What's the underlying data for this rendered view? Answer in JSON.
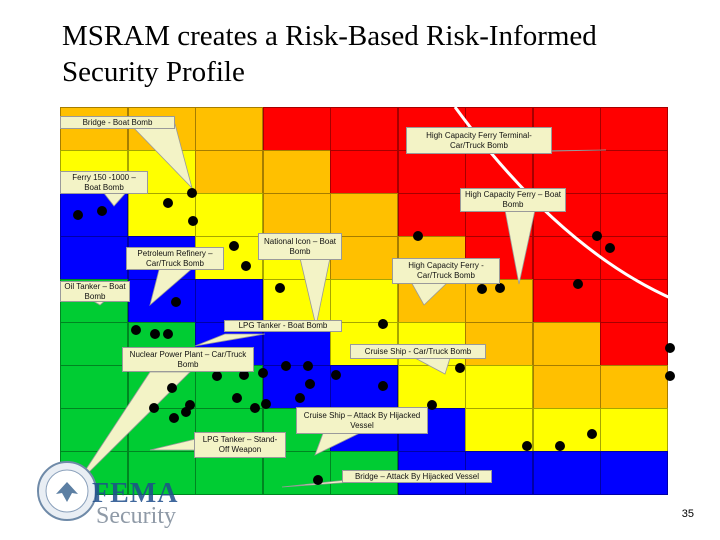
{
  "title": "MSRAM creates a Risk-Based Risk-Informed Security Profile",
  "page_number": "35",
  "logo": {
    "agency": "FEMA",
    "department_word": "Security"
  },
  "colors": {
    "red": "#ff0000",
    "orange": "#ffc000",
    "yellow": "#ffff00",
    "green": "#00cc33",
    "blue": "#0000ff",
    "dot": "#000000",
    "callout_fill": "#f3f3c6",
    "curve": "#ffffff"
  },
  "grid": {
    "rows": [
      [
        "orange",
        "orange",
        "orange",
        "red",
        "red",
        "red",
        "red",
        "red",
        "red"
      ],
      [
        "yellow",
        "yellow",
        "orange",
        "orange",
        "red",
        "red",
        "red",
        "red",
        "red"
      ],
      [
        "blue",
        "yellow",
        "yellow",
        "orange",
        "orange",
        "red",
        "red",
        "red",
        "red"
      ],
      [
        "blue",
        "blue",
        "yellow",
        "yellow",
        "orange",
        "orange",
        "red",
        "red",
        "red"
      ],
      [
        "green",
        "blue",
        "blue",
        "yellow",
        "yellow",
        "orange",
        "orange",
        "red",
        "red"
      ],
      [
        "green",
        "green",
        "blue",
        "blue",
        "yellow",
        "yellow",
        "orange",
        "orange",
        "red"
      ],
      [
        "green",
        "green",
        "green",
        "blue",
        "blue",
        "yellow",
        "yellow",
        "orange",
        "orange"
      ],
      [
        "green",
        "green",
        "green",
        "green",
        "blue",
        "blue",
        "yellow",
        "yellow",
        "yellow"
      ],
      [
        "green",
        "green",
        "green",
        "green",
        "green",
        "blue",
        "blue",
        "blue",
        "blue"
      ]
    ]
  },
  "callouts": [
    {
      "id": "bridge",
      "label": "Bridge - Boat Bomb"
    },
    {
      "id": "hc-ferry-terminal",
      "label": "High Capacity Ferry Terminal-Car/Truck Bomb"
    },
    {
      "id": "ferry-150",
      "label": "Ferry 150 -1000 – Boat Bomb"
    },
    {
      "id": "hc-ferry-boat",
      "label": "High Capacity Ferry – Boat Bomb"
    },
    {
      "id": "petroleum",
      "label": "Petroleum Refinery – Car/Truck Bomb"
    },
    {
      "id": "national-icon",
      "label": "National Icon – Boat Bomb"
    },
    {
      "id": "hc-ferry-car",
      "label": "High Capacity Ferry - Car/Truck Bomb"
    },
    {
      "id": "oil-tanker",
      "label": "Oil Tanker – Boat Bomb"
    },
    {
      "id": "lpg-boat",
      "label": "LPG Tanker - Boat Bomb"
    },
    {
      "id": "nuclear",
      "label": "Nuclear Power Plant – Car/Truck Bomb"
    },
    {
      "id": "cruise-car",
      "label": "Cruise Ship - Car/Truck Bomb"
    },
    {
      "id": "cruise-hijack",
      "label": "Cruise Ship – Attack By Hijacked Vessel"
    },
    {
      "id": "lpg-standoff",
      "label": "LPG Tanker – Stand-Off Weapon"
    },
    {
      "id": "bridge-hijack",
      "label": "Bridge – Attack By Hijacked Vessel"
    }
  ]
}
